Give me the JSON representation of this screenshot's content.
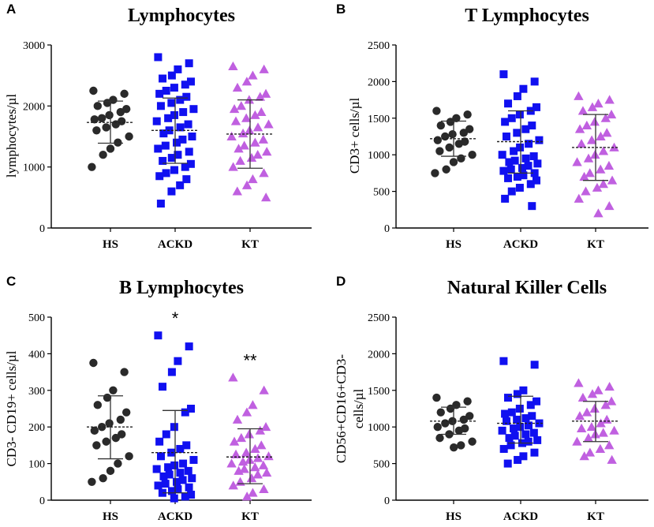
{
  "colors": {
    "HS": "#2a2a2a",
    "ACKD": "#1010f0",
    "KT": "#c060e0",
    "axis": "#000000"
  },
  "chart_data": [
    {
      "panel": "A",
      "type": "scatter",
      "title": "Lymphocytes",
      "ylabel": "lymphocytes/µl",
      "ylim": [
        0,
        3000
      ],
      "yticks": [
        "0",
        "1000",
        "2000",
        "3000"
      ],
      "categories": [
        "HS",
        "ACKD",
        "KT"
      ],
      "annotations": [
        "",
        "",
        ""
      ],
      "series": [
        {
          "name": "HS",
          "marker": "circle",
          "mean": 1730,
          "sd_low": 1390,
          "sd_high": 2080,
          "values": [
            2250,
            2200,
            2100,
            2050,
            2000,
            1950,
            1900,
            1850,
            1800,
            1780,
            1750,
            1700,
            1650,
            1600,
            1500,
            1400,
            1300,
            1200,
            1000
          ]
        },
        {
          "name": "ACKD",
          "marker": "square",
          "mean": 1600,
          "sd_low": 1060,
          "sd_high": 2130,
          "values": [
            2800,
            2700,
            2600,
            2500,
            2450,
            2400,
            2350,
            2300,
            2250,
            2200,
            2150,
            2100,
            2050,
            2000,
            1950,
            1900,
            1850,
            1800,
            1750,
            1700,
            1650,
            1600,
            1550,
            1500,
            1450,
            1400,
            1350,
            1300,
            1250,
            1200,
            1150,
            1100,
            1050,
            1000,
            950,
            900,
            850,
            800,
            700,
            600,
            400
          ]
        },
        {
          "name": "KT",
          "marker": "triangle",
          "mean": 1540,
          "sd_low": 980,
          "sd_high": 2100,
          "values": [
            2650,
            2600,
            2500,
            2400,
            2300,
            2200,
            2150,
            2100,
            2000,
            1950,
            1900,
            1850,
            1800,
            1750,
            1700,
            1650,
            1600,
            1550,
            1500,
            1450,
            1400,
            1350,
            1300,
            1250,
            1200,
            1150,
            1100,
            1000,
            900,
            800,
            700,
            600,
            500
          ]
        }
      ]
    },
    {
      "panel": "B",
      "type": "scatter",
      "title": "T Lymphocytes",
      "ylabel": "CD3+ cells/µl",
      "ylim": [
        0,
        2500
      ],
      "yticks": [
        "0",
        "500",
        "1000",
        "1500",
        "2000",
        "2500"
      ],
      "categories": [
        "HS",
        "ACKD",
        "KT"
      ],
      "annotations": [
        "",
        "",
        ""
      ],
      "series": [
        {
          "name": "HS",
          "marker": "circle",
          "mean": 1220,
          "sd_low": 980,
          "sd_high": 1460,
          "values": [
            1600,
            1550,
            1500,
            1450,
            1400,
            1350,
            1300,
            1280,
            1250,
            1200,
            1180,
            1150,
            1100,
            1050,
            1000,
            950,
            900,
            800,
            750
          ]
        },
        {
          "name": "ACKD",
          "marker": "square",
          "mean": 1180,
          "sd_low": 750,
          "sd_high": 1600,
          "values": [
            2100,
            2000,
            1900,
            1800,
            1700,
            1650,
            1600,
            1550,
            1500,
            1450,
            1400,
            1350,
            1300,
            1250,
            1200,
            1150,
            1100,
            1050,
            1000,
            980,
            950,
            920,
            900,
            880,
            850,
            820,
            800,
            780,
            750,
            720,
            700,
            680,
            650,
            600,
            550,
            500,
            400,
            300
          ]
        },
        {
          "name": "KT",
          "marker": "triangle",
          "mean": 1100,
          "sd_low": 650,
          "sd_high": 1550,
          "values": [
            1800,
            1750,
            1700,
            1650,
            1600,
            1550,
            1500,
            1450,
            1400,
            1350,
            1300,
            1250,
            1200,
            1150,
            1100,
            1050,
            1000,
            950,
            900,
            850,
            800,
            750,
            700,
            650,
            600,
            550,
            500,
            400,
            300,
            200
          ]
        }
      ]
    },
    {
      "panel": "C",
      "type": "scatter",
      "title": "B Lymphocytes",
      "ylabel": "CD3- CD19+ cells/µl",
      "ylim": [
        0,
        500
      ],
      "yticks": [
        "0",
        "100",
        "200",
        "300",
        "400",
        "500"
      ],
      "categories": [
        "HS",
        "ACKD",
        "KT"
      ],
      "annotations": [
        "",
        "*",
        "**"
      ],
      "series": [
        {
          "name": "HS",
          "marker": "circle",
          "mean": 200,
          "sd_low": 113,
          "sd_high": 285,
          "values": [
            375,
            350,
            300,
            280,
            260,
            240,
            220,
            210,
            200,
            190,
            180,
            170,
            160,
            150,
            120,
            100,
            80,
            60,
            50
          ]
        },
        {
          "name": "ACKD",
          "marker": "square",
          "mean": 130,
          "sd_low": 20,
          "sd_high": 245,
          "values": [
            450,
            420,
            380,
            350,
            310,
            250,
            240,
            200,
            180,
            160,
            150,
            140,
            130,
            120,
            110,
            100,
            95,
            90,
            85,
            80,
            75,
            70,
            65,
            60,
            55,
            50,
            45,
            40,
            35,
            30,
            25,
            20,
            15,
            10,
            5
          ]
        },
        {
          "name": "KT",
          "marker": "triangle",
          "mean": 118,
          "sd_low": 45,
          "sd_high": 195,
          "values": [
            335,
            300,
            260,
            240,
            220,
            200,
            190,
            180,
            170,
            160,
            150,
            140,
            130,
            125,
            120,
            115,
            110,
            105,
            100,
            95,
            90,
            85,
            80,
            75,
            70,
            60,
            50,
            40,
            30,
            20,
            10
          ]
        }
      ]
    },
    {
      "panel": "D",
      "type": "scatter",
      "title": "Natural Killer  Cells",
      "ylabel": "CD56+CD16+CD3- cells/µl",
      "ylabel_lines": [
        "CD56+CD16+CD3-",
        "cells/µl"
      ],
      "ylim": [
        0,
        2500
      ],
      "yticks": [
        "0",
        "500",
        "1000",
        "1500",
        "2000",
        "2500"
      ],
      "categories": [
        "HS",
        "ACKD",
        "KT"
      ],
      "annotations": [
        "",
        "",
        ""
      ],
      "series": [
        {
          "name": "HS",
          "marker": "circle",
          "mean": 1080,
          "sd_low": 900,
          "sd_high": 1270,
          "values": [
            1400,
            1350,
            1300,
            1250,
            1200,
            1150,
            1100,
            1080,
            1050,
            1000,
            980,
            950,
            900,
            850,
            800,
            750,
            720
          ]
        },
        {
          "name": "ACKD",
          "marker": "square",
          "mean": 1050,
          "sd_low": 780,
          "sd_high": 1420,
          "values": [
            1900,
            1850,
            1500,
            1450,
            1400,
            1350,
            1300,
            1250,
            1200,
            1180,
            1150,
            1120,
            1100,
            1080,
            1050,
            1020,
            1000,
            980,
            950,
            920,
            900,
            880,
            850,
            820,
            800,
            780,
            750,
            700,
            650,
            600,
            550,
            500
          ]
        },
        {
          "name": "KT",
          "marker": "triangle",
          "mean": 1080,
          "sd_low": 800,
          "sd_high": 1350,
          "values": [
            1600,
            1550,
            1500,
            1450,
            1400,
            1350,
            1300,
            1250,
            1200,
            1150,
            1100,
            1050,
            1000,
            980,
            950,
            920,
            900,
            850,
            800,
            750,
            700,
            650,
            600,
            550
          ]
        }
      ]
    }
  ]
}
